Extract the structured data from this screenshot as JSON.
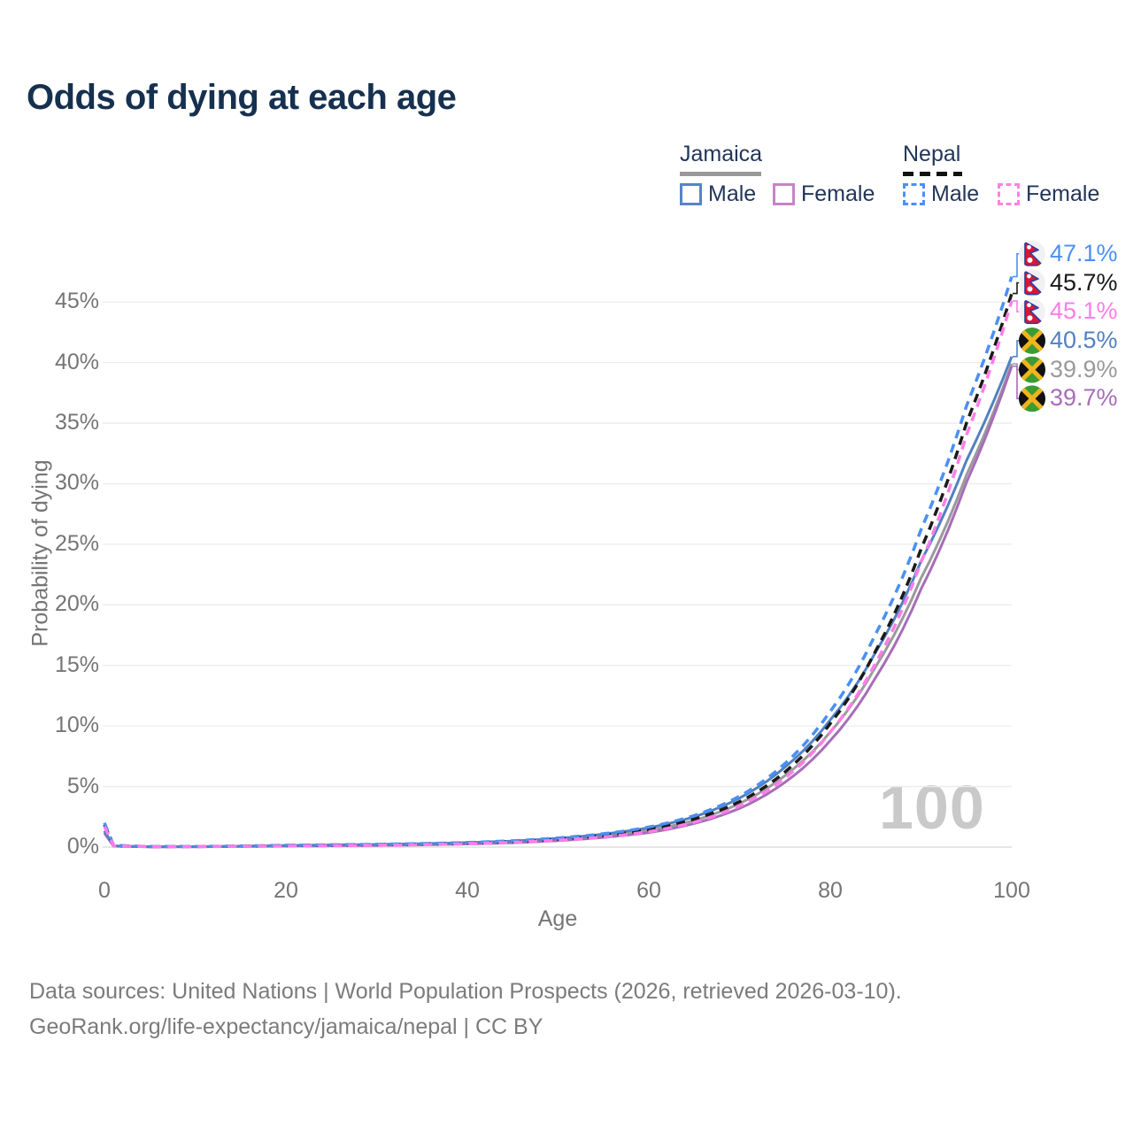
{
  "title": "Odds of dying at each age",
  "legend": {
    "groups": [
      {
        "label": "Jamaica",
        "line_style": "solid",
        "underline_color": "#999999",
        "items": [
          {
            "label": "Male",
            "color": "#5585c5"
          },
          {
            "label": "Female",
            "color": "#c584c6"
          }
        ]
      },
      {
        "label": "Nepal",
        "line_style": "dashed",
        "underline_color": "#111111",
        "items": [
          {
            "label": "Male",
            "color": "#4a90f4"
          },
          {
            "label": "Female",
            "color": "#ff80e5"
          }
        ]
      }
    ]
  },
  "age_indicator": "100",
  "footer": {
    "line1": "Data sources: United Nations | World Population Prospects (2026, retrieved 2026-03-10).",
    "line2": "GeoRank.org/life-expectancy/jamaica/nepal | CC BY"
  },
  "chart_data": {
    "type": "line",
    "title": "Odds of dying at each age",
    "xlabel": "Age",
    "ylabel": "Probability of dying",
    "xlim": [
      0,
      100
    ],
    "ylim": [
      0,
      49
    ],
    "grid": "horizontal",
    "xticks": [
      {
        "v": 0,
        "label": "0"
      },
      {
        "v": 20,
        "label": "20"
      },
      {
        "v": 40,
        "label": "40"
      },
      {
        "v": 60,
        "label": "60"
      },
      {
        "v": 80,
        "label": "80"
      },
      {
        "v": 100,
        "label": "100"
      }
    ],
    "yticks": [
      {
        "v": 0,
        "label": "0%"
      },
      {
        "v": 5,
        "label": "5%"
      },
      {
        "v": 10,
        "label": "10%"
      },
      {
        "v": 15,
        "label": "15%"
      },
      {
        "v": 20,
        "label": "20%"
      },
      {
        "v": 25,
        "label": "25%"
      },
      {
        "v": 30,
        "label": "30%"
      },
      {
        "v": 35,
        "label": "35%"
      },
      {
        "v": 40,
        "label": "40%"
      },
      {
        "v": 45,
        "label": "45%"
      }
    ],
    "x": [
      0,
      1,
      5,
      10,
      15,
      20,
      25,
      30,
      35,
      40,
      45,
      50,
      55,
      60,
      65,
      70,
      75,
      80,
      85,
      90,
      95,
      100
    ],
    "series": [
      {
        "name": "Jamaica (both sexes)",
        "country": "Jamaica",
        "sex": "both",
        "color": "#9a9a9a",
        "dashed": false,
        "flag": "jamaica",
        "end_label": "39.9%",
        "values": [
          1.25,
          0.09,
          0.028,
          0.03,
          0.065,
          0.11,
          0.145,
          0.18,
          0.235,
          0.31,
          0.43,
          0.62,
          0.92,
          1.38,
          2.2,
          3.6,
          5.9,
          9.5,
          14.9,
          22.2,
          30.7,
          39.9
        ]
      },
      {
        "name": "Jamaica Female",
        "country": "Jamaica",
        "sex": "female",
        "color": "#a76db8",
        "dashed": false,
        "flag": "jamaica",
        "end_label": "39.7%",
        "values": [
          1.15,
          0.08,
          0.025,
          0.027,
          0.05,
          0.08,
          0.11,
          0.14,
          0.185,
          0.26,
          0.36,
          0.53,
          0.8,
          1.2,
          1.95,
          3.2,
          5.35,
          8.8,
          14.0,
          21.3,
          30.1,
          39.7
        ]
      },
      {
        "name": "Jamaica Male",
        "country": "Jamaica",
        "sex": "male",
        "color": "#5181c2",
        "dashed": false,
        "flag": "jamaica",
        "end_label": "40.5%",
        "values": [
          1.35,
          0.1,
          0.03,
          0.035,
          0.08,
          0.14,
          0.18,
          0.22,
          0.28,
          0.37,
          0.5,
          0.72,
          1.07,
          1.6,
          2.5,
          4.05,
          6.6,
          10.5,
          16.1,
          23.6,
          31.9,
          40.5
        ]
      },
      {
        "name": "Nepal (both sexes)",
        "country": "Nepal",
        "sex": "both",
        "color": "#1a1a1a",
        "dashed": true,
        "flag": "nepal",
        "end_label": "45.7%",
        "values": [
          1.85,
          0.13,
          0.045,
          0.045,
          0.075,
          0.12,
          0.155,
          0.19,
          0.245,
          0.33,
          0.45,
          0.65,
          0.96,
          1.45,
          2.3,
          3.75,
          6.2,
          10.2,
          16.2,
          24.6,
          35.0,
          45.7
        ]
      },
      {
        "name": "Nepal Male",
        "country": "Nepal",
        "sex": "male",
        "color": "#4a90f4",
        "dashed": true,
        "flag": "nepal",
        "end_label": "47.1%",
        "values": [
          2.0,
          0.15,
          0.05,
          0.05,
          0.09,
          0.15,
          0.19,
          0.23,
          0.29,
          0.38,
          0.52,
          0.75,
          1.1,
          1.65,
          2.6,
          4.2,
          6.9,
          11.2,
          17.6,
          26.2,
          36.4,
          47.1
        ]
      },
      {
        "name": "Nepal Female",
        "country": "Nepal",
        "sex": "female",
        "color": "#ff7de9",
        "dashed": true,
        "flag": "nepal",
        "end_label": "45.1%",
        "values": [
          1.7,
          0.12,
          0.04,
          0.04,
          0.06,
          0.09,
          0.12,
          0.15,
          0.2,
          0.28,
          0.39,
          0.56,
          0.83,
          1.27,
          2.05,
          3.4,
          5.7,
          9.5,
          15.2,
          23.5,
          34.0,
          45.1
        ]
      }
    ]
  }
}
